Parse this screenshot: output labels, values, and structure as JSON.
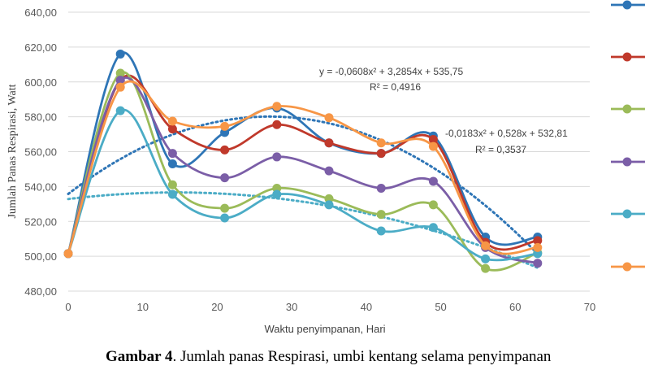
{
  "chart_data": {
    "type": "scatter",
    "xlabel": "Waktu penyimpanan, Hari",
    "ylabel": "Jumlah Panas Respirasi, Watt",
    "xlim": [
      0,
      70
    ],
    "ylim": [
      480,
      640
    ],
    "xticks": [
      "0",
      "10",
      "20",
      "30",
      "40",
      "50",
      "60",
      "70"
    ],
    "yticks": [
      "480,00",
      "500,00",
      "520,00",
      "540,00",
      "560,00",
      "580,00",
      "600,00",
      "620,00",
      "640,00"
    ],
    "x": [
      0,
      7,
      14,
      21,
      28,
      35,
      42,
      49,
      56,
      63
    ],
    "series": [
      {
        "color": "#2E75B6",
        "values": [
          501.5,
          616,
          553,
          571,
          585,
          565,
          559,
          569,
          511,
          511
        ]
      },
      {
        "color": "#C0392B",
        "values": [
          501.5,
          601,
          573,
          561,
          575.5,
          565,
          559,
          567,
          508,
          509
        ]
      },
      {
        "color": "#9BBB59",
        "values": [
          501.5,
          605,
          541,
          527.5,
          539,
          533,
          524,
          529.5,
          493,
          502
        ]
      },
      {
        "color": "#7B5EA7",
        "values": [
          501.5,
          601,
          559,
          545,
          557,
          549,
          539,
          543,
          505,
          496
        ]
      },
      {
        "color": "#4BACC6",
        "values": [
          501.5,
          583.5,
          535.5,
          522,
          535.5,
          529.5,
          514.5,
          516.5,
          498.5,
          501.5
        ]
      },
      {
        "color": "#F79646",
        "values": [
          501.5,
          597,
          577.5,
          574.5,
          586,
          579.5,
          565,
          563,
          506,
          505
        ]
      }
    ],
    "trendlines": [
      {
        "color": "#2E75B6",
        "a": -0.0608,
        "b": 3.2854,
        "c": 535.75
      },
      {
        "color": "#4BACC6",
        "a": -0.0183,
        "b": 0.528,
        "c": 532.81
      }
    ],
    "annotations": {
      "eq1": "y = -0,0608x² + 3,2854x + 535,75",
      "r1": "R² = 0,4916",
      "eq2": "-0,0183x² + 0,528x + 532,81",
      "r2": "R² = 0,3537"
    },
    "grid": "horizontal",
    "legend": "right (labels not visible)"
  },
  "caption": {
    "bold": "Gambar 4",
    "text": ". Jumlah panas Respirasi, umbi kentang selama penyimpanan"
  }
}
